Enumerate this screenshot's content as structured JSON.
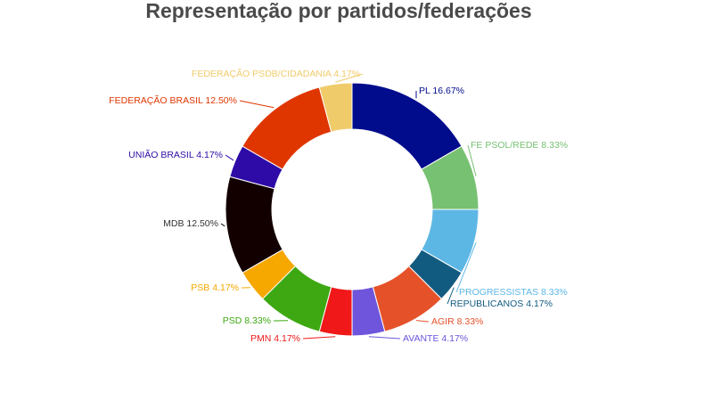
{
  "chart_data": {
    "type": "donut",
    "title": "Representação por partidos/federações",
    "categories": [
      "PL",
      "FE PSOL/REDE",
      "PROGRESSISTAS",
      "REPUBLICANOS",
      "AGIR",
      "AVANTE",
      "PMN",
      "PSD",
      "PSB",
      "MDB",
      "UNIÃO BRASIL",
      "FEDERAÇÃO BRASIL",
      "FEDERAÇÃO PSDB/CIDADANIA"
    ],
    "values": [
      16.67,
      8.33,
      8.33,
      4.17,
      8.33,
      4.17,
      4.17,
      8.33,
      4.17,
      12.5,
      4.17,
      12.5,
      4.17
    ],
    "value_labels": [
      "16.67%",
      "8.33%",
      "8.33%",
      "4.17%",
      "8.33%",
      "4.17%",
      "4.17%",
      "8.33%",
      "4.17%",
      "12.50%",
      "4.17%",
      "12.50%",
      "4.17%"
    ],
    "colors": [
      "#000c8c",
      "#77c172",
      "#5db7e5",
      "#125b80",
      "#e5522a",
      "#6e55db",
      "#f01818",
      "#3ea813",
      "#f6a800",
      "#120000",
      "#2e0ba6",
      "#df3600",
      "#f0cb6a"
    ]
  }
}
